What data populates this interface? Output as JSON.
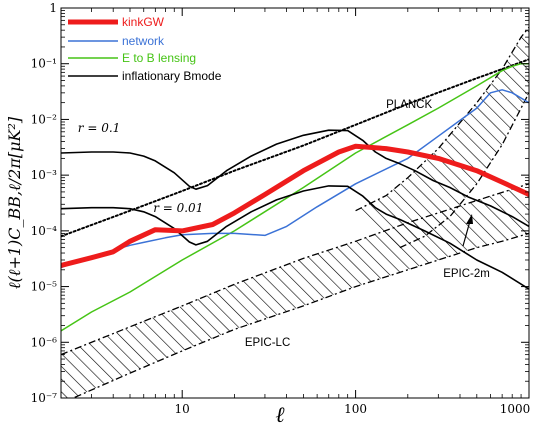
{
  "chart_data": {
    "type": "line",
    "title": "",
    "xlabel": "ℓ",
    "ylabel": "ℓ(ℓ+1)C_BB,ℓ/2π[μK²]",
    "xscale": "log",
    "yscale": "log",
    "xlim": [
      2,
      1000
    ],
    "ylim": [
      1e-07,
      1
    ],
    "x_ticks": [
      10,
      100,
      1000
    ],
    "x_tick_labels": [
      "10",
      "100",
      "1000"
    ],
    "y_ticks": [
      1e-07,
      1e-06,
      1e-05,
      0.0001,
      0.001,
      0.01,
      0.1,
      1
    ],
    "y_tick_labels": [
      "10⁻⁷",
      "10⁻⁶",
      "10⁻⁵",
      "10⁻⁴",
      "10⁻³",
      "10⁻²",
      "10⁻¹",
      "1"
    ],
    "legend_position": "top-left",
    "series": [
      {
        "name": "kinkGW",
        "color": "#ee1c1c",
        "width": 5,
        "dash": "",
        "legend": true,
        "points": [
          [
            2,
            2.4e-05
          ],
          [
            3,
            3.3e-05
          ],
          [
            4,
            4.2e-05
          ],
          [
            5,
            6.5e-05
          ],
          [
            7,
            0.000105
          ],
          [
            10,
            0.0001
          ],
          [
            15,
            0.00013
          ],
          [
            20,
            0.00021
          ],
          [
            30,
            0.00045
          ],
          [
            50,
            0.0012
          ],
          [
            80,
            0.0026
          ],
          [
            100,
            0.0033
          ],
          [
            150,
            0.003
          ],
          [
            200,
            0.0026
          ],
          [
            300,
            0.002
          ],
          [
            500,
            0.0012
          ],
          [
            700,
            0.00075
          ],
          [
            1000,
            0.00045
          ]
        ]
      },
      {
        "name": "network",
        "color": "#3b72d6",
        "width": 1.5,
        "dash": "",
        "legend": true,
        "points": [
          [
            2,
            2.2e-05
          ],
          [
            3,
            3.5e-05
          ],
          [
            4,
            4.5e-05
          ],
          [
            5,
            5.5e-05
          ],
          [
            6,
            6.2e-05
          ],
          [
            8,
            7.5e-05
          ],
          [
            10,
            8.5e-05
          ],
          [
            15,
            9e-05
          ],
          [
            20,
            9e-05
          ],
          [
            25,
            8.6e-05
          ],
          [
            30,
            8.3e-05
          ],
          [
            40,
            0.00012
          ],
          [
            60,
            0.00027
          ],
          [
            100,
            0.0007
          ],
          [
            200,
            0.002
          ],
          [
            300,
            0.005
          ],
          [
            500,
            0.016
          ],
          [
            600,
            0.03
          ],
          [
            700,
            0.034
          ],
          [
            800,
            0.03
          ],
          [
            1000,
            0.02
          ]
        ]
      },
      {
        "name": "E to B lensing",
        "color": "#46c416",
        "width": 1.5,
        "dash": "",
        "legend": true,
        "points": [
          [
            2,
            1.6e-06
          ],
          [
            3,
            3.5e-06
          ],
          [
            5,
            8e-06
          ],
          [
            10,
            3e-05
          ],
          [
            20,
            0.0001
          ],
          [
            50,
            0.0006
          ],
          [
            100,
            0.0025
          ],
          [
            200,
            0.008
          ],
          [
            300,
            0.016
          ],
          [
            500,
            0.04
          ],
          [
            700,
            0.075
          ],
          [
            800,
            0.09
          ],
          [
            900,
            0.1
          ],
          [
            1000,
            0.1
          ]
        ]
      },
      {
        "name": "inflationary Bmode",
        "color": "#000000",
        "width": 1.6,
        "dash": "",
        "legend": true,
        "points": [
          [
            2,
            0.0025
          ],
          [
            3,
            0.0026
          ],
          [
            4,
            0.0026
          ],
          [
            5,
            0.0025
          ],
          [
            6,
            0.0022
          ],
          [
            7,
            0.0018
          ],
          [
            9,
            0.0011
          ],
          [
            11,
            0.00063
          ],
          [
            12,
            0.00056
          ],
          [
            14,
            0.00065
          ],
          [
            18,
            0.0012
          ],
          [
            25,
            0.0022
          ],
          [
            35,
            0.0036
          ],
          [
            50,
            0.0052
          ],
          [
            70,
            0.0064
          ],
          [
            90,
            0.0063
          ],
          [
            110,
            0.0042
          ],
          [
            130,
            0.0026
          ],
          [
            150,
            0.002
          ],
          [
            180,
            0.0016
          ],
          [
            220,
            0.0012
          ],
          [
            280,
            0.0008
          ],
          [
            350,
            0.0006
          ],
          [
            450,
            0.0004
          ],
          [
            600,
            0.00028
          ],
          [
            800,
            0.00018
          ],
          [
            1000,
            0.00012
          ]
        ]
      },
      {
        "name": "",
        "color": "#000000",
        "width": 1.6,
        "dash": "",
        "legend": false,
        "points": [
          [
            2,
            0.00025
          ],
          [
            3,
            0.00026
          ],
          [
            4,
            0.00026
          ],
          [
            5,
            0.00025
          ],
          [
            6,
            0.00022
          ],
          [
            7,
            0.00018
          ],
          [
            9,
            0.00011
          ],
          [
            11,
            6.3e-05
          ],
          [
            12,
            5.6e-05
          ],
          [
            14,
            6.5e-05
          ],
          [
            18,
            0.00012
          ],
          [
            25,
            0.00022
          ],
          [
            35,
            0.00036
          ],
          [
            50,
            0.00052
          ],
          [
            70,
            0.00064
          ],
          [
            90,
            0.00063
          ],
          [
            110,
            0.00042
          ],
          [
            130,
            0.00026
          ],
          [
            150,
            0.0002
          ],
          [
            180,
            0.00016
          ],
          [
            250,
            0.0001
          ],
          [
            350,
            6e-05
          ],
          [
            500,
            3e-05
          ],
          [
            700,
            1.8e-05
          ],
          [
            1000,
            9e-06
          ]
        ]
      },
      {
        "name": "",
        "color": "#000000",
        "width": 2,
        "dash": "2,2.5",
        "legend": false,
        "points": [
          [
            2,
            8e-05
          ],
          [
            5,
            0.00023
          ],
          [
            10,
            0.00052
          ],
          [
            20,
            0.0012
          ],
          [
            50,
            0.0034
          ],
          [
            100,
            0.008
          ],
          [
            200,
            0.019
          ],
          [
            500,
            0.055
          ],
          [
            700,
            0.08
          ],
          [
            1000,
            0.12
          ]
        ]
      }
    ],
    "bands": [
      {
        "name": "EPIC-LC",
        "upper": [
          [
            2,
            6e-07
          ],
          [
            5,
            1.9e-06
          ],
          [
            10,
            4.5e-06
          ],
          [
            20,
            1.1e-05
          ],
          [
            50,
            3.2e-05
          ],
          [
            100,
            6.5e-05
          ],
          [
            200,
            0.00014
          ],
          [
            300,
            0.00021
          ],
          [
            500,
            0.00035
          ],
          [
            1000,
            0.0007
          ]
        ],
        "lower": [
          [
            2,
            8e-08
          ],
          [
            5,
            2.8e-07
          ],
          [
            10,
            7e-07
          ],
          [
            20,
            1.7e-06
          ],
          [
            50,
            4.5e-06
          ],
          [
            100,
            1e-05
          ],
          [
            200,
            2e-05
          ],
          [
            300,
            3e-05
          ],
          [
            500,
            5e-05
          ],
          [
            700,
            6.5e-05
          ],
          [
            1000,
            9e-05
          ]
        ]
      },
      {
        "name": "EPIC-2m",
        "upper": [
          [
            100,
            0.00023
          ],
          [
            150,
            0.00043
          ],
          [
            200,
            0.0009
          ],
          [
            300,
            0.003
          ],
          [
            500,
            0.02
          ],
          [
            700,
            0.08
          ],
          [
            900,
            0.3
          ],
          [
            1000,
            0.45
          ]
        ],
        "lower": [
          [
            180,
            5e-05
          ],
          [
            250,
            8e-05
          ],
          [
            350,
            0.00018
          ],
          [
            500,
            0.0007
          ],
          [
            700,
            0.0035
          ],
          [
            900,
            0.016
          ],
          [
            1000,
            0.03
          ]
        ]
      }
    ],
    "annotations": [
      {
        "text": "PLANCK",
        "x": 150,
        "y": 0.016
      },
      {
        "text": "r = 0.1",
        "x": 2.5,
        "y": 0.006
      },
      {
        "text": "r = 0.01",
        "x": 6.8,
        "y": 0.00022
      },
      {
        "text": "EPIC-2m",
        "x": 320,
        "y": 1.5e-05
      },
      {
        "text": "EPIC-LC",
        "x": 23,
        "y": 8.5e-07
      }
    ]
  }
}
